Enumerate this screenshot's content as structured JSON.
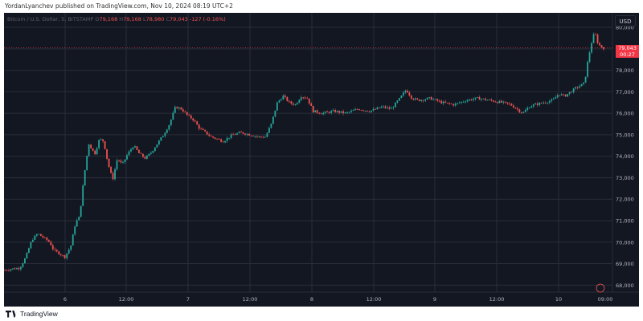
{
  "header": {
    "published_text": "YordanLyanchev published on TradingView.com, Nov 10, 2024 08:19 UTC+2"
  },
  "legend": {
    "symbol": "Bitcoin / U.S. Dollar, 5, BITSTAMP",
    "open_label": "O",
    "open": "79,168",
    "high_label": "H",
    "high": "79,168",
    "low_label": "L",
    "low": "78,980",
    "close_label": "C",
    "close": "79,043",
    "change": "-127 (-0.16%)"
  },
  "currency_button": "USD",
  "last_price": {
    "value": "79,043",
    "countdown": "00:27"
  },
  "footer": {
    "logo_text": "TradingView"
  },
  "colors": {
    "background": "#131722",
    "up": "#26a69a",
    "down": "#ef5350",
    "grid": "#2a2e39",
    "price_tag": "#f23645"
  },
  "chart_data": {
    "type": "candlestick",
    "y_axis_side": "right",
    "ylim": [
      67600,
      80600
    ],
    "y_ticks": [
      "68,000",
      "69,000",
      "70,000",
      "71,000",
      "72,000",
      "73,000",
      "74,000",
      "75,000",
      "76,000",
      "77,000",
      "78,000",
      "79,000",
      "80,000"
    ],
    "x_ticks": [
      "6",
      "12:00",
      "7",
      "12:00",
      "8",
      "12:00",
      "9",
      "12:00",
      "10",
      "09:00"
    ],
    "grid": true,
    "series": [
      {
        "close_path": [
          [
            0,
            68700
          ],
          [
            0.01,
            68750
          ],
          [
            0.025,
            68800
          ],
          [
            0.035,
            69300
          ],
          [
            0.045,
            70100
          ],
          [
            0.055,
            70400
          ],
          [
            0.065,
            70200
          ],
          [
            0.075,
            70000
          ],
          [
            0.082,
            69600
          ],
          [
            0.09,
            69500
          ],
          [
            0.1,
            69300
          ],
          [
            0.11,
            69800
          ],
          [
            0.118,
            70900
          ],
          [
            0.125,
            71200
          ],
          [
            0.132,
            73000
          ],
          [
            0.14,
            74600
          ],
          [
            0.15,
            74100
          ],
          [
            0.158,
            74800
          ],
          [
            0.165,
            74700
          ],
          [
            0.172,
            73700
          ],
          [
            0.18,
            72900
          ],
          [
            0.188,
            73900
          ],
          [
            0.196,
            73600
          ],
          [
            0.205,
            74100
          ],
          [
            0.215,
            74500
          ],
          [
            0.225,
            74100
          ],
          [
            0.235,
            73900
          ],
          [
            0.245,
            74200
          ],
          [
            0.255,
            74600
          ],
          [
            0.265,
            75000
          ],
          [
            0.275,
            75500
          ],
          [
            0.285,
            76300
          ],
          [
            0.295,
            76200
          ],
          [
            0.305,
            75900
          ],
          [
            0.315,
            75700
          ],
          [
            0.325,
            75300
          ],
          [
            0.335,
            75100
          ],
          [
            0.345,
            74900
          ],
          [
            0.355,
            74800
          ],
          [
            0.365,
            74700
          ],
          [
            0.38,
            75000
          ],
          [
            0.395,
            75100
          ],
          [
            0.41,
            75000
          ],
          [
            0.425,
            74900
          ],
          [
            0.435,
            74900
          ],
          [
            0.445,
            75500
          ],
          [
            0.455,
            76500
          ],
          [
            0.465,
            76800
          ],
          [
            0.475,
            76500
          ],
          [
            0.485,
            76400
          ],
          [
            0.495,
            76800
          ],
          [
            0.505,
            76700
          ],
          [
            0.515,
            76100
          ],
          [
            0.53,
            76000
          ],
          [
            0.55,
            76100
          ],
          [
            0.57,
            76000
          ],
          [
            0.59,
            76200
          ],
          [
            0.61,
            76100
          ],
          [
            0.63,
            76300
          ],
          [
            0.645,
            76200
          ],
          [
            0.66,
            76700
          ],
          [
            0.67,
            77100
          ],
          [
            0.68,
            76700
          ],
          [
            0.69,
            76600
          ],
          [
            0.71,
            76700
          ],
          [
            0.73,
            76500
          ],
          [
            0.75,
            76400
          ],
          [
            0.77,
            76600
          ],
          [
            0.79,
            76700
          ],
          [
            0.81,
            76600
          ],
          [
            0.83,
            76500
          ],
          [
            0.845,
            76400
          ],
          [
            0.855,
            76200
          ],
          [
            0.865,
            76000
          ],
          [
            0.875,
            76300
          ],
          [
            0.885,
            76400
          ],
          [
            0.9,
            76500
          ],
          [
            0.915,
            76600
          ],
          [
            0.925,
            76900
          ],
          [
            0.935,
            76800
          ],
          [
            0.945,
            77000
          ],
          [
            0.955,
            77200
          ],
          [
            0.962,
            77300
          ],
          [
            0.968,
            77400
          ],
          [
            0.974,
            78500
          ],
          [
            0.98,
            79300
          ],
          [
            0.985,
            79800
          ],
          [
            0.99,
            79300
          ],
          [
            0.995,
            79100
          ],
          [
            1,
            79043
          ]
        ]
      }
    ]
  }
}
